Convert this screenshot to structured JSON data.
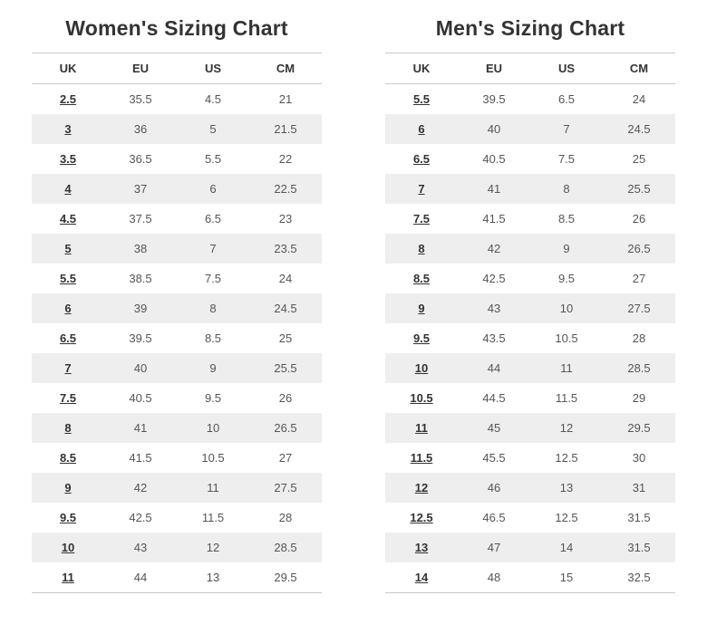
{
  "colors": {
    "stripe": "#eeeeee",
    "border": "#c9c9c9",
    "value_text": "#555555",
    "link_text": "#333333",
    "title_text": "#333333",
    "background": "#ffffff"
  },
  "charts": [
    {
      "id": "womens",
      "title": "Women's Sizing Chart",
      "columns": [
        "UK",
        "EU",
        "US",
        "CM"
      ],
      "rows": [
        [
          "2.5",
          "35.5",
          "4.5",
          "21"
        ],
        [
          "3",
          "36",
          "5",
          "21.5"
        ],
        [
          "3.5",
          "36.5",
          "5.5",
          "22"
        ],
        [
          "4",
          "37",
          "6",
          "22.5"
        ],
        [
          "4.5",
          "37.5",
          "6.5",
          "23"
        ],
        [
          "5",
          "38",
          "7",
          "23.5"
        ],
        [
          "5.5",
          "38.5",
          "7.5",
          "24"
        ],
        [
          "6",
          "39",
          "8",
          "24.5"
        ],
        [
          "6.5",
          "39.5",
          "8.5",
          "25"
        ],
        [
          "7",
          "40",
          "9",
          "25.5"
        ],
        [
          "7.5",
          "40.5",
          "9.5",
          "26"
        ],
        [
          "8",
          "41",
          "10",
          "26.5"
        ],
        [
          "8.5",
          "41.5",
          "10.5",
          "27"
        ],
        [
          "9",
          "42",
          "11",
          "27.5"
        ],
        [
          "9.5",
          "42.5",
          "11.5",
          "28"
        ],
        [
          "10",
          "43",
          "12",
          "28.5"
        ],
        [
          "11",
          "44",
          "13",
          "29.5"
        ]
      ]
    },
    {
      "id": "mens",
      "title": "Men's Sizing Chart",
      "columns": [
        "UK",
        "EU",
        "US",
        "CM"
      ],
      "rows": [
        [
          "5.5",
          "39.5",
          "6.5",
          "24"
        ],
        [
          "6",
          "40",
          "7",
          "24.5"
        ],
        [
          "6.5",
          "40.5",
          "7.5",
          "25"
        ],
        [
          "7",
          "41",
          "8",
          "25.5"
        ],
        [
          "7.5",
          "41.5",
          "8.5",
          "26"
        ],
        [
          "8",
          "42",
          "9",
          "26.5"
        ],
        [
          "8.5",
          "42.5",
          "9.5",
          "27"
        ],
        [
          "9",
          "43",
          "10",
          "27.5"
        ],
        [
          "9.5",
          "43.5",
          "10.5",
          "28"
        ],
        [
          "10",
          "44",
          "11",
          "28.5"
        ],
        [
          "10.5",
          "44.5",
          "11.5",
          "29"
        ],
        [
          "11",
          "45",
          "12",
          "29.5"
        ],
        [
          "11.5",
          "45.5",
          "12.5",
          "30"
        ],
        [
          "12",
          "46",
          "13",
          "31"
        ],
        [
          "12.5",
          "46.5",
          "12.5",
          "31.5"
        ],
        [
          "13",
          "47",
          "14",
          "31.5"
        ],
        [
          "14",
          "48",
          "15",
          "32.5"
        ]
      ]
    }
  ]
}
